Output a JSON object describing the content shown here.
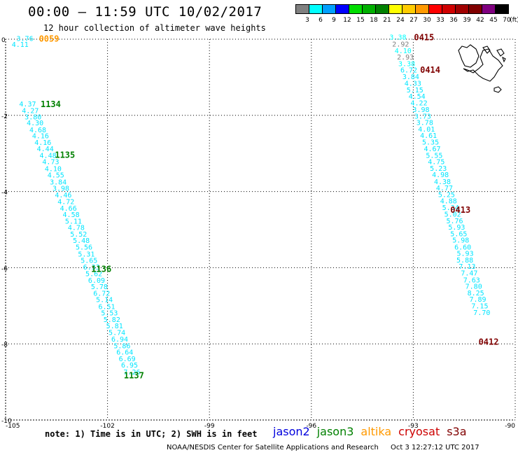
{
  "header": {
    "title": "00:00 – 11:59 UTC 10/02/2017",
    "subtitle": "12 hour collection of altimeter wave heights"
  },
  "color_scale": {
    "unit": "(ft)",
    "bins": [
      {
        "label": "3",
        "color": "#808080"
      },
      {
        "label": "6",
        "color": "#00ffff"
      },
      {
        "label": "9",
        "color": "#00a0ff"
      },
      {
        "label": "12",
        "color": "#0000ff"
      },
      {
        "label": "15",
        "color": "#00dd00"
      },
      {
        "label": "18",
        "color": "#00b000"
      },
      {
        "label": "21",
        "color": "#008000"
      },
      {
        "label": "24",
        "color": "#ffff00"
      },
      {
        "label": "27",
        "color": "#ffcc00"
      },
      {
        "label": "30",
        "color": "#ff9900"
      },
      {
        "label": "33",
        "color": "#ff0000"
      },
      {
        "label": "36",
        "color": "#d00000"
      },
      {
        "label": "39",
        "color": "#a00000"
      },
      {
        "label": "42",
        "color": "#800000"
      },
      {
        "label": "45",
        "color": "#800080"
      },
      {
        "label": "70",
        "color": "#000000"
      }
    ]
  },
  "map": {
    "lon_range": [
      -105,
      -90
    ],
    "lat_range": [
      -10,
      0
    ],
    "x_ticks": [
      {
        "value": -105,
        "label": "-105"
      },
      {
        "value": -102,
        "label": "-102"
      },
      {
        "value": -99,
        "label": "-99"
      },
      {
        "value": -96,
        "label": "-96"
      },
      {
        "value": -93,
        "label": "-93"
      },
      {
        "value": -90,
        "label": "-90"
      }
    ],
    "y_ticks": [
      {
        "value": 0,
        "label": "0"
      },
      {
        "value": -2,
        "label": "-2"
      },
      {
        "value": -4,
        "label": "-4"
      },
      {
        "value": -6,
        "label": "-6"
      },
      {
        "value": -8,
        "label": "-8"
      },
      {
        "value": -10,
        "label": "-10"
      }
    ],
    "grid": true
  },
  "tracks": [
    {
      "time_labels": [
        {
          "text": "0059",
          "lon": -104.02,
          "lat": 0.03,
          "color": "#ff9900"
        }
      ],
      "readings": [
        {
          "v": "3.76",
          "lon": -104.68,
          "lat": 0.03
        },
        {
          "v": "4.11",
          "lon": -104.82,
          "lat": -0.13
        }
      ]
    },
    {
      "time_labels": [
        {
          "text": "1134",
          "lon": -103.97,
          "lat": -1.69,
          "color": "#008000"
        },
        {
          "text": "1135",
          "lon": -103.55,
          "lat": -3.02,
          "color": "#008000"
        },
        {
          "text": "1136",
          "lon": -102.48,
          "lat": -6.02,
          "color": "#008000"
        },
        {
          "text": "1137",
          "lon": -101.52,
          "lat": -8.81,
          "color": "#008000"
        }
      ],
      "readings": [
        {
          "v": "4.37",
          "lon": -104.6,
          "lat": -1.69
        },
        {
          "v": "4.27",
          "lon": -104.52,
          "lat": -1.87
        },
        {
          "v": "3.80",
          "lon": -104.44,
          "lat": -2.03
        },
        {
          "v": "4.30",
          "lon": -104.38,
          "lat": -2.19
        },
        {
          "v": "4.68",
          "lon": -104.3,
          "lat": -2.37
        },
        {
          "v": "4.16",
          "lon": -104.22,
          "lat": -2.53
        },
        {
          "v": "4.16",
          "lon": -104.15,
          "lat": -2.7
        },
        {
          "v": "4.44",
          "lon": -104.08,
          "lat": -2.87
        },
        {
          "v": "4.48",
          "lon": -104.0,
          "lat": -3.04
        },
        {
          "v": "4.73",
          "lon": -103.92,
          "lat": -3.21
        },
        {
          "v": "4.10",
          "lon": -103.85,
          "lat": -3.39
        },
        {
          "v": "4.55",
          "lon": -103.77,
          "lat": -3.56
        },
        {
          "v": "3.84",
          "lon": -103.7,
          "lat": -3.74
        },
        {
          "v": "3.98",
          "lon": -103.62,
          "lat": -3.91
        },
        {
          "v": "4.46",
          "lon": -103.55,
          "lat": -4.08
        },
        {
          "v": "4.72",
          "lon": -103.47,
          "lat": -4.26
        },
        {
          "v": "4.66",
          "lon": -103.4,
          "lat": -4.43
        },
        {
          "v": "4.58",
          "lon": -103.32,
          "lat": -4.6
        },
        {
          "v": "5.11",
          "lon": -103.25,
          "lat": -4.77
        },
        {
          "v": "4.78",
          "lon": -103.17,
          "lat": -4.94
        },
        {
          "v": "5.52",
          "lon": -103.1,
          "lat": -5.11
        },
        {
          "v": "5.48",
          "lon": -103.02,
          "lat": -5.28
        },
        {
          "v": "5.56",
          "lon": -102.94,
          "lat": -5.45
        },
        {
          "v": "5.31",
          "lon": -102.87,
          "lat": -5.63
        },
        {
          "v": "5.65",
          "lon": -102.79,
          "lat": -5.8
        },
        {
          "v": "6.33",
          "lon": -102.72,
          "lat": -5.97
        },
        {
          "v": "5.62",
          "lon": -102.65,
          "lat": -6.15
        },
        {
          "v": "6.09",
          "lon": -102.57,
          "lat": -6.32
        },
        {
          "v": "5.78",
          "lon": -102.49,
          "lat": -6.49
        },
        {
          "v": "6.72",
          "lon": -102.42,
          "lat": -6.66
        },
        {
          "v": "5.14",
          "lon": -102.34,
          "lat": -6.83
        },
        {
          "v": "6.51",
          "lon": -102.27,
          "lat": -7.01
        },
        {
          "v": "5.53",
          "lon": -102.19,
          "lat": -7.18
        },
        {
          "v": "5.82",
          "lon": -102.12,
          "lat": -7.35
        },
        {
          "v": "5.81",
          "lon": -102.04,
          "lat": -7.52
        },
        {
          "v": "5.74",
          "lon": -101.97,
          "lat": -7.69
        },
        {
          "v": "6.94",
          "lon": -101.89,
          "lat": -7.87
        },
        {
          "v": "5.86",
          "lon": -101.82,
          "lat": -8.04
        },
        {
          "v": "6.64",
          "lon": -101.74,
          "lat": -8.21
        },
        {
          "v": "6.69",
          "lon": -101.67,
          "lat": -8.38
        },
        {
          "v": "6.95",
          "lon": -101.6,
          "lat": -8.55
        },
        {
          "v": "7.26",
          "lon": -101.53,
          "lat": -8.73
        }
      ]
    },
    {
      "time_labels": [
        {
          "text": "0415",
          "lon": -92.98,
          "lat": 0.06,
          "color": "#800000"
        },
        {
          "text": "0414",
          "lon": -92.8,
          "lat": -0.79,
          "color": "#800000"
        },
        {
          "text": "0413",
          "lon": -91.91,
          "lat": -4.47,
          "color": "#800000"
        },
        {
          "text": "0412",
          "lon": -91.08,
          "lat": -7.93,
          "color": "#800000"
        }
      ],
      "readings": [
        {
          "v": "3.38",
          "lon": -93.7,
          "lat": 0.06,
          "c": "#00ffff"
        },
        {
          "v": "2.92",
          "lon": -93.62,
          "lat": -0.12,
          "c": "#808080"
        },
        {
          "v": "4.10",
          "lon": -93.55,
          "lat": -0.29,
          "c": "#00ffff"
        },
        {
          "v": "2.93",
          "lon": -93.48,
          "lat": -0.46,
          "c": "#808080"
        },
        {
          "v": "3.38",
          "lon": -93.44,
          "lat": -0.63,
          "c": "#00ffff"
        },
        {
          "v": "6.72",
          "lon": -93.38,
          "lat": -0.8
        },
        {
          "v": "3.84",
          "lon": -93.32,
          "lat": -0.97
        },
        {
          "v": "4.33",
          "lon": -93.26,
          "lat": -1.15
        },
        {
          "v": "5.15",
          "lon": -93.2,
          "lat": -1.32
        },
        {
          "v": "4.54",
          "lon": -93.14,
          "lat": -1.49
        },
        {
          "v": "4.22",
          "lon": -93.08,
          "lat": -1.66
        },
        {
          "v": "3.98",
          "lon": -93.02,
          "lat": -1.84
        },
        {
          "v": "3.73",
          "lon": -92.97,
          "lat": -2.01
        },
        {
          "v": "3.78",
          "lon": -92.91,
          "lat": -2.18
        },
        {
          "v": "4.01",
          "lon": -92.86,
          "lat": -2.35
        },
        {
          "v": "4.61",
          "lon": -92.8,
          "lat": -2.52
        },
        {
          "v": "5.35",
          "lon": -92.74,
          "lat": -2.69
        },
        {
          "v": "4.67",
          "lon": -92.69,
          "lat": -2.87
        },
        {
          "v": "5.55",
          "lon": -92.63,
          "lat": -3.04
        },
        {
          "v": "4.75",
          "lon": -92.57,
          "lat": -3.21
        },
        {
          "v": "5.23",
          "lon": -92.51,
          "lat": -3.38
        },
        {
          "v": "4.98",
          "lon": -92.45,
          "lat": -3.55
        },
        {
          "v": "4.38",
          "lon": -92.39,
          "lat": -3.73
        },
        {
          "v": "4.77",
          "lon": -92.33,
          "lat": -3.9
        },
        {
          "v": "5.25",
          "lon": -92.27,
          "lat": -4.07
        },
        {
          "v": "4.88",
          "lon": -92.21,
          "lat": -4.24
        },
        {
          "v": "5.34",
          "lon": -92.15,
          "lat": -4.41
        },
        {
          "v": "5.02",
          "lon": -92.09,
          "lat": -4.59
        },
        {
          "v": "5.76",
          "lon": -92.03,
          "lat": -4.76
        },
        {
          "v": "5.93",
          "lon": -91.97,
          "lat": -4.93
        },
        {
          "v": "5.65",
          "lon": -91.91,
          "lat": -5.1
        },
        {
          "v": "5.98",
          "lon": -91.85,
          "lat": -5.27
        },
        {
          "v": "6.60",
          "lon": -91.79,
          "lat": -5.45
        },
        {
          "v": "5.93",
          "lon": -91.72,
          "lat": -5.62
        },
        {
          "v": "5.88",
          "lon": -91.73,
          "lat": -5.79
        },
        {
          "v": "7.13",
          "lon": -91.66,
          "lat": -5.96
        },
        {
          "v": "7.47",
          "lon": -91.6,
          "lat": -6.13
        },
        {
          "v": "7.63",
          "lon": -91.53,
          "lat": -6.31
        },
        {
          "v": "7.80",
          "lon": -91.47,
          "lat": -6.48
        },
        {
          "v": "8.25",
          "lon": -91.41,
          "lat": -6.65
        },
        {
          "v": "7.89",
          "lon": -91.35,
          "lat": -6.82
        },
        {
          "v": "7.15",
          "lon": -91.29,
          "lat": -6.99
        },
        {
          "v": "7.70",
          "lon": -91.23,
          "lat": -7.17
        }
      ]
    }
  ],
  "footer": {
    "note": "note: 1) Time is in UTC; 2) SWH is in feet",
    "satellites": [
      {
        "name": "jason2",
        "color": "#0000dd"
      },
      {
        "name": "jason3",
        "color": "#008000"
      },
      {
        "name": "altika",
        "color": "#ff9900"
      },
      {
        "name": "cryosat",
        "color": "#cc0000"
      },
      {
        "name": "s3a",
        "color": "#800000"
      }
    ],
    "credit": "NOAA/NESDIS Center for Satellite Applications and Research",
    "timestamp": "Oct  3 12:27:12 UTC 2017"
  }
}
